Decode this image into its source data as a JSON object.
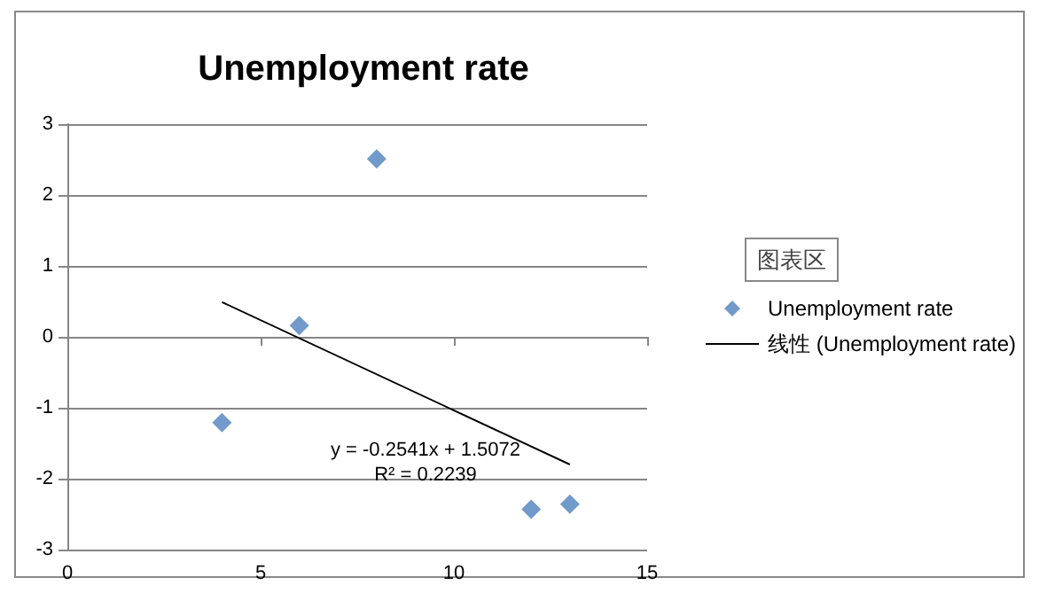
{
  "chart_data": {
    "type": "scatter",
    "title": "Unemployment rate",
    "x": [
      4,
      6,
      8,
      12,
      13
    ],
    "series": [
      {
        "name": "Unemployment rate",
        "color": "#4f81bd",
        "values": [
          -1.21,
          0.16,
          2.51,
          -2.43,
          -2.36
        ],
        "marker": "diamond"
      },
      {
        "name": "线性 (Unemployment rate)",
        "type": "line",
        "color": "#000000",
        "x": [
          4,
          13
        ],
        "values": [
          0.49,
          -1.8
        ],
        "marker": "none",
        "line_style": "solid"
      }
    ],
    "xlim": [
      0,
      15
    ],
    "xticks": [
      0,
      5,
      10,
      15
    ],
    "ylim": [
      -3,
      3
    ],
    "yticks": [
      -3,
      -2,
      -1,
      0,
      1,
      2,
      3
    ],
    "grid": "y",
    "legend": "right",
    "annotations": [
      "y = -0.2541x + 1.5072",
      "R² = 0.2239",
      "图表区"
    ]
  }
}
